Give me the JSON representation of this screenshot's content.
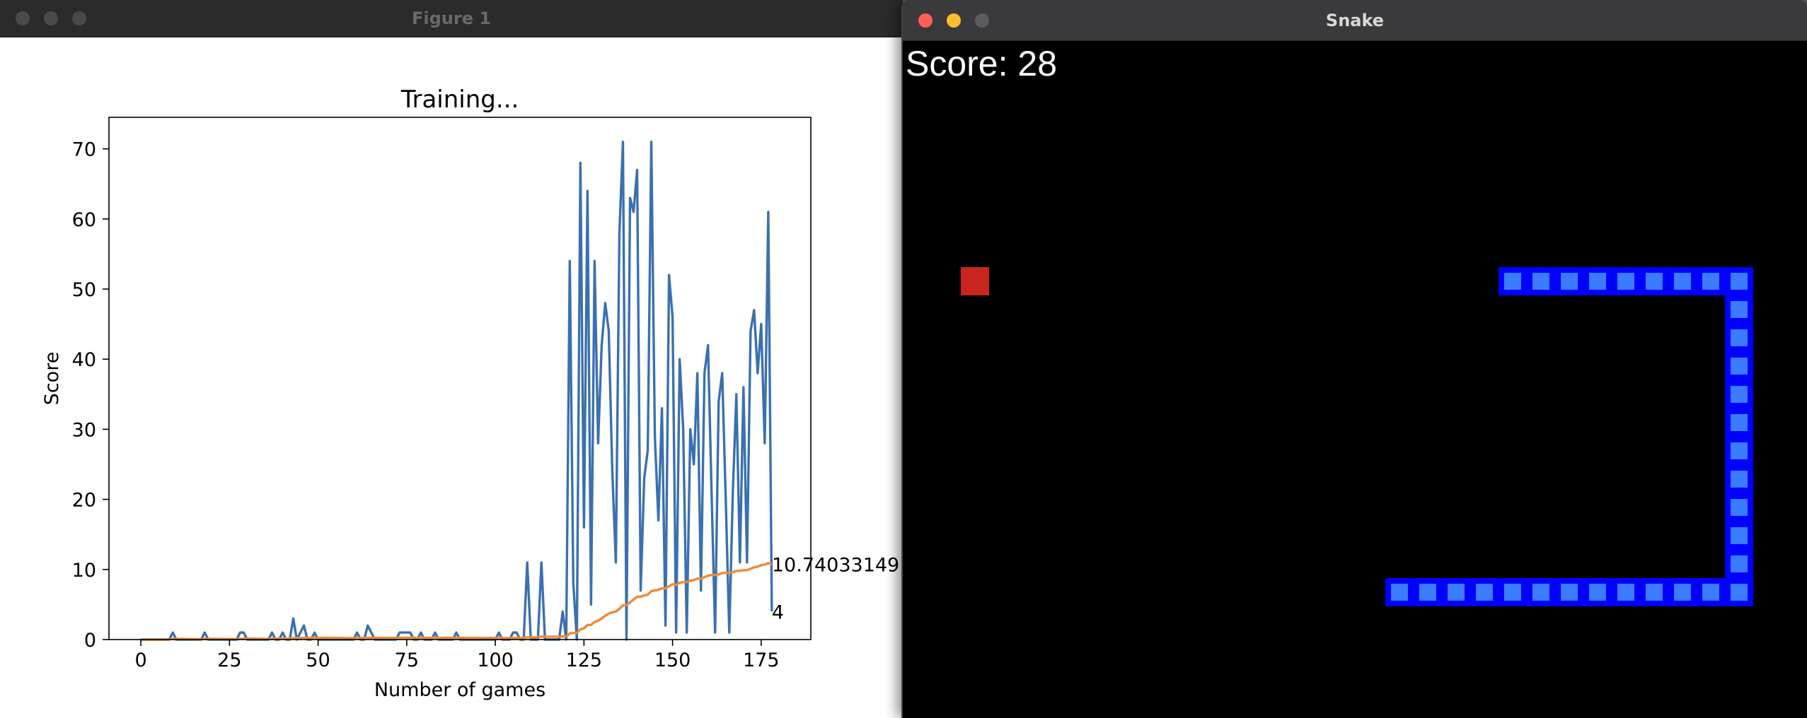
{
  "figure_window": {
    "title": "Figure 1"
  },
  "snake_window": {
    "title": "Snake",
    "score_text": "Score: 28",
    "colors": {
      "background": "#000000",
      "snake": "#0000ff",
      "snake_inner": "#3a7bff",
      "food": "#c8251c"
    },
    "grid_cell": 40,
    "food": [
      2,
      8
    ],
    "snake_segments": [
      [
        21,
        8
      ],
      [
        22,
        8
      ],
      [
        23,
        8
      ],
      [
        24,
        8
      ],
      [
        25,
        8
      ],
      [
        26,
        8
      ],
      [
        27,
        8
      ],
      [
        28,
        8
      ],
      [
        29,
        8
      ],
      [
        29,
        9
      ],
      [
        29,
        10
      ],
      [
        29,
        11
      ],
      [
        29,
        12
      ],
      [
        29,
        13
      ],
      [
        29,
        14
      ],
      [
        29,
        15
      ],
      [
        29,
        16
      ],
      [
        29,
        17
      ],
      [
        29,
        18
      ],
      [
        29,
        19
      ],
      [
        28,
        19
      ],
      [
        27,
        19
      ],
      [
        26,
        19
      ],
      [
        25,
        19
      ],
      [
        24,
        19
      ],
      [
        23,
        19
      ],
      [
        22,
        19
      ],
      [
        21,
        19
      ],
      [
        20,
        19
      ],
      [
        19,
        19
      ],
      [
        18,
        19
      ],
      [
        17,
        19
      ]
    ]
  },
  "chart_data": {
    "type": "line",
    "title": "Training...",
    "xlabel": "Number of games",
    "ylabel": "Score",
    "xlim": [
      -9,
      189
    ],
    "ylim": [
      0,
      74.5
    ],
    "xticks": [
      0,
      25,
      50,
      75,
      100,
      125,
      150,
      175
    ],
    "yticks": [
      0,
      10,
      20,
      30,
      40,
      50,
      60,
      70
    ],
    "grid": false,
    "series": [
      {
        "color": "#3b70b0",
        "values": [
          0,
          0,
          0,
          0,
          0,
          0,
          0,
          0,
          0,
          1,
          0,
          0,
          0,
          0,
          0,
          0,
          0,
          0,
          1,
          0,
          0,
          0,
          0,
          0,
          0,
          0,
          0,
          0,
          1,
          1,
          0,
          0,
          0,
          0,
          0,
          0,
          0,
          1,
          0,
          0,
          1,
          0,
          0,
          3,
          0,
          1,
          2,
          0,
          0,
          1,
          0,
          0,
          0,
          0,
          0,
          0,
          0,
          0,
          0,
          0,
          0,
          1,
          0,
          0,
          2,
          1,
          0,
          0,
          0,
          0,
          0,
          0,
          0,
          1,
          1,
          1,
          1,
          0,
          0,
          1,
          0,
          0,
          0,
          1,
          0,
          0,
          0,
          0,
          0,
          1,
          0,
          0,
          0,
          0,
          0,
          0,
          0,
          0,
          0,
          0,
          0,
          1,
          0,
          0,
          0,
          1,
          1,
          0,
          0,
          11,
          0,
          0,
          0,
          11,
          0,
          0,
          0,
          0,
          0,
          4,
          0,
          54,
          8,
          0,
          68,
          16,
          64,
          5,
          54,
          28,
          42,
          48,
          44,
          24,
          11,
          58,
          71,
          0,
          63,
          61,
          67,
          7,
          23,
          27,
          71,
          29,
          17,
          33,
          2,
          52,
          46,
          1,
          40,
          30,
          1,
          30,
          25,
          38,
          7,
          38,
          42,
          21,
          1,
          34,
          38,
          20,
          1,
          21,
          35,
          11,
          36,
          11,
          44,
          47,
          38,
          45,
          28,
          61,
          4
        ],
        "end_label": "4"
      },
      {
        "color": "#ee8a37",
        "values": [
          0,
          0,
          0,
          0,
          0,
          0,
          0,
          0,
          0,
          0.1,
          0.1,
          0.09,
          0.08,
          0.08,
          0.07,
          0.07,
          0.06,
          0.06,
          0.11,
          0.1,
          0.1,
          0.1,
          0.09,
          0.09,
          0.08,
          0.08,
          0.08,
          0.08,
          0.11,
          0.13,
          0.13,
          0.13,
          0.12,
          0.12,
          0.12,
          0.11,
          0.11,
          0.13,
          0.13,
          0.13,
          0.15,
          0.14,
          0.14,
          0.21,
          0.2,
          0.22,
          0.26,
          0.25,
          0.25,
          0.26,
          0.25,
          0.25,
          0.25,
          0.24,
          0.24,
          0.24,
          0.23,
          0.23,
          0.22,
          0.22,
          0.22,
          0.23,
          0.23,
          0.23,
          0.25,
          0.26,
          0.26,
          0.25,
          0.25,
          0.25,
          0.24,
          0.24,
          0.24,
          0.24,
          0.25,
          0.26,
          0.26,
          0.26,
          0.26,
          0.26,
          0.26,
          0.25,
          0.25,
          0.26,
          0.26,
          0.25,
          0.25,
          0.25,
          0.25,
          0.25,
          0.25,
          0.25,
          0.24,
          0.24,
          0.24,
          0.24,
          0.23,
          0.23,
          0.23,
          0.23,
          0.23,
          0.23,
          0.23,
          0.22,
          0.22,
          0.23,
          0.23,
          0.23,
          0.23,
          0.33,
          0.32,
          0.32,
          0.32,
          0.42,
          0.42,
          0.41,
          0.41,
          0.41,
          0.4,
          0.44,
          0.43,
          0.88,
          0.94,
          0.93,
          1.47,
          1.58,
          2.08,
          2.1,
          2.5,
          2.7,
          3.0,
          3.4,
          3.7,
          3.9,
          4.0,
          4.4,
          4.9,
          4.9,
          5.3,
          5.7,
          6.1,
          6.1,
          6.3,
          6.4,
          6.9,
          7.0,
          7.1,
          7.3,
          7.3,
          7.6,
          7.9,
          7.8,
          8.1,
          8.2,
          8.2,
          8.4,
          8.5,
          8.7,
          8.7,
          8.9,
          9.1,
          9.2,
          9.2,
          9.3,
          9.5,
          9.5,
          9.5,
          9.6,
          9.8,
          9.8,
          9.9,
          9.9,
          10.1,
          10.3,
          10.4,
          10.6,
          10.7,
          10.9,
          10.74
        ],
        "end_label": "10.74033149"
      }
    ]
  }
}
